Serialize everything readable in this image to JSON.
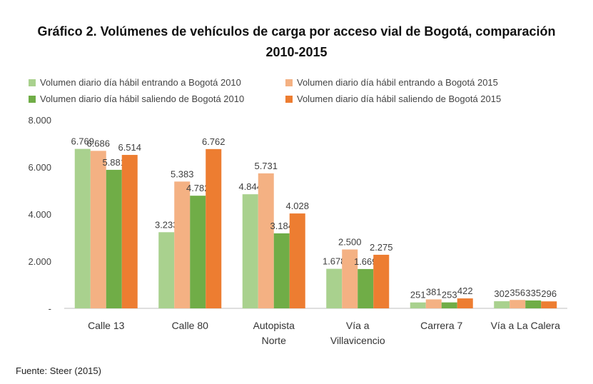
{
  "title_line1": "Gráfico 2. Volúmenes de vehículos de carga por acceso vial de Bogotá, comparación",
  "title_line2": "2010-2015",
  "source": "Fuente: Steer (2015)",
  "colors": {
    "series": [
      "#a9d18e",
      "#f4b183",
      "#70ad47",
      "#ed7d31"
    ]
  },
  "chart_data": {
    "type": "bar",
    "title": "Gráfico 2. Volúmenes de vehículos de carga por acceso vial de Bogotá, comparación 2010-2015",
    "categories": [
      "Calle 13",
      "Calle 80",
      "Autopista Norte",
      "Vía a Villavicencio",
      "Carrera 7",
      "Vía a La Calera"
    ],
    "category_lines": [
      [
        "Calle 13"
      ],
      [
        "Calle 80"
      ],
      [
        "Autopista",
        "Norte"
      ],
      [
        "Vía a",
        "Villavicencio"
      ],
      [
        "Carrera 7"
      ],
      [
        "Vía a La Calera"
      ]
    ],
    "series": [
      {
        "name": "Volumen diario día hábil entrando a Bogotá 2010",
        "values": [
          6769,
          3233,
          4844,
          1678,
          251,
          302
        ],
        "labels": [
          "6.769",
          "3.233",
          "4.844",
          "1.678",
          "251",
          "302"
        ]
      },
      {
        "name": "Volumen diario día hábil entrando a Bogotá 2015",
        "values": [
          6686,
          5383,
          5731,
          2500,
          381,
          356
        ],
        "labels": [
          "6.686",
          "5.383",
          "5.731",
          "2.500",
          "381",
          "356"
        ]
      },
      {
        "name": "Volumen diario día hábil saliendo de Bogotá 2010",
        "values": [
          5881,
          4782,
          3184,
          1669,
          253,
          335
        ],
        "labels": [
          "5.881",
          "4.782",
          "3.184",
          "1.669",
          "253",
          "335"
        ]
      },
      {
        "name": "Volumen diario día hábil saliendo de Bogotá 2015",
        "values": [
          6514,
          6762,
          4028,
          2275,
          422,
          296
        ],
        "labels": [
          "6.514",
          "6.762",
          "4.028",
          "2.275",
          "422",
          "296"
        ]
      }
    ],
    "yticks": [
      0,
      2000,
      4000,
      6000,
      8000
    ],
    "ytick_labels": [
      "-",
      "2.000",
      "4.000",
      "6.000",
      "8.000"
    ],
    "ylim": [
      0,
      8000
    ],
    "grid": false,
    "legend_position": "top"
  }
}
